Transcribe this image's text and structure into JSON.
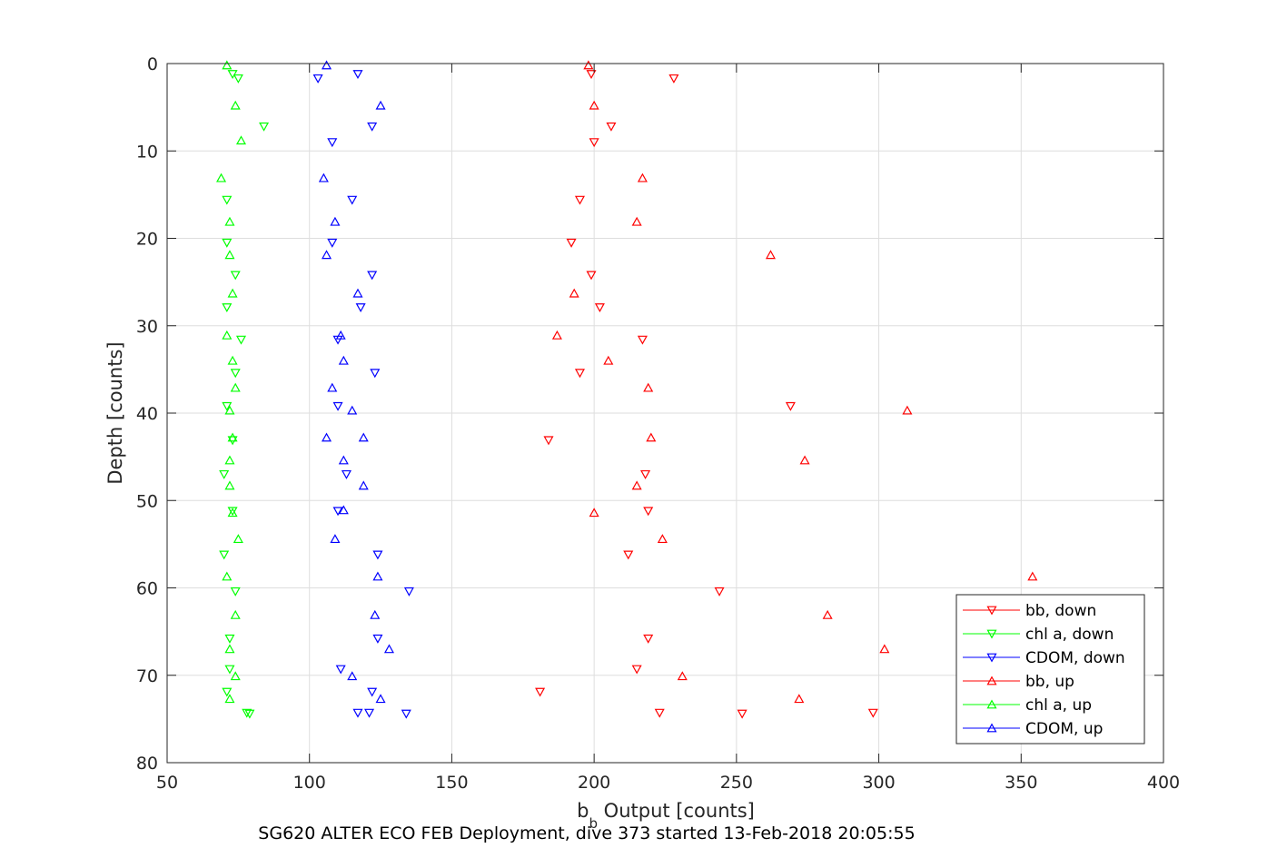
{
  "chart_data": {
    "type": "scatter",
    "xlabel_main": "b",
    "xlabel_sub": "b",
    "xlabel_rest": " Output [counts]",
    "ylabel": "Depth [counts]",
    "caption": "SG620 ALTER ECO FEB Deployment, dive 373 started 13-Feb-2018 20:05:55",
    "xlim": [
      50,
      400
    ],
    "ylim": [
      0,
      80
    ],
    "y_reversed": true,
    "grid": true,
    "legend_position": "bottom-right",
    "xticks": [
      50,
      100,
      150,
      200,
      250,
      300,
      350,
      400
    ],
    "yticks": [
      0,
      10,
      20,
      30,
      40,
      50,
      60,
      70,
      80
    ],
    "series": [
      {
        "name": "bb, down",
        "color": "#ff0000",
        "marker": "triangle-down",
        "points": [
          [
            199,
            1.2
          ],
          [
            228,
            1.7
          ],
          [
            206,
            7.2
          ],
          [
            200,
            9
          ],
          [
            195,
            15.6
          ],
          [
            192,
            20.5
          ],
          [
            199,
            24.2
          ],
          [
            202,
            27.9
          ],
          [
            217,
            31.6
          ],
          [
            195,
            35.4
          ],
          [
            269,
            39.2
          ],
          [
            184,
            43.1
          ],
          [
            218,
            47
          ],
          [
            219,
            51.2
          ],
          [
            212,
            56.2
          ],
          [
            244,
            60.4
          ],
          [
            219,
            65.8
          ],
          [
            215,
            69.3
          ],
          [
            181,
            71.9
          ],
          [
            223,
            74.3
          ],
          [
            252,
            74.4
          ],
          [
            298,
            74.3
          ]
        ]
      },
      {
        "name": "chl a, down",
        "color": "#00ff00",
        "marker": "triangle-down",
        "points": [
          [
            73,
            1.2
          ],
          [
            75,
            1.7
          ],
          [
            84,
            7.2
          ],
          [
            71,
            15.6
          ],
          [
            71,
            20.5
          ],
          [
            74,
            24.2
          ],
          [
            71,
            27.9
          ],
          [
            76,
            31.6
          ],
          [
            74,
            35.4
          ],
          [
            71,
            39.2
          ],
          [
            73,
            43.1
          ],
          [
            70,
            47
          ],
          [
            73,
            51.2
          ],
          [
            70,
            56.2
          ],
          [
            74,
            60.4
          ],
          [
            72,
            65.8
          ],
          [
            72,
            69.3
          ],
          [
            71,
            71.9
          ],
          [
            78,
            74.3
          ],
          [
            79,
            74.4
          ]
        ]
      },
      {
        "name": "CDOM, down",
        "color": "#0000ff",
        "marker": "triangle-down",
        "points": [
          [
            117,
            1.2
          ],
          [
            103,
            1.7
          ],
          [
            122,
            7.2
          ],
          [
            108,
            9
          ],
          [
            115,
            15.6
          ],
          [
            108,
            20.5
          ],
          [
            122,
            24.2
          ],
          [
            118,
            27.9
          ],
          [
            110,
            31.6
          ],
          [
            123,
            35.4
          ],
          [
            110,
            39.2
          ],
          [
            113,
            47
          ],
          [
            110,
            51.2
          ],
          [
            124,
            56.2
          ],
          [
            135,
            60.4
          ],
          [
            124,
            65.8
          ],
          [
            111,
            69.3
          ],
          [
            122,
            71.9
          ],
          [
            117,
            74.3
          ],
          [
            121,
            74.3
          ],
          [
            134,
            74.4
          ]
        ]
      },
      {
        "name": "bb, up",
        "color": "#ff0000",
        "marker": "triangle-up",
        "points": [
          [
            198,
            0.2
          ],
          [
            200,
            4.8
          ],
          [
            217,
            13.1
          ],
          [
            215,
            18.1
          ],
          [
            262,
            21.9
          ],
          [
            193,
            26.3
          ],
          [
            187,
            31.1
          ],
          [
            205,
            34
          ],
          [
            219,
            37.1
          ],
          [
            310,
            39.7
          ],
          [
            220,
            42.8
          ],
          [
            274,
            45.4
          ],
          [
            215,
            48.3
          ],
          [
            200,
            51.4
          ],
          [
            224,
            54.4
          ],
          [
            354,
            58.7
          ],
          [
            282,
            63.1
          ],
          [
            302,
            67
          ],
          [
            231,
            70.1
          ],
          [
            272,
            72.7
          ]
        ]
      },
      {
        "name": "chl a, up",
        "color": "#00ff00",
        "marker": "triangle-up",
        "points": [
          [
            71,
            0.2
          ],
          [
            74,
            4.8
          ],
          [
            76,
            8.8
          ],
          [
            69,
            13.1
          ],
          [
            72,
            18.1
          ],
          [
            72,
            21.9
          ],
          [
            73,
            26.3
          ],
          [
            71,
            31.1
          ],
          [
            73,
            34
          ],
          [
            74,
            37.1
          ],
          [
            72,
            39.7
          ],
          [
            73,
            42.8
          ],
          [
            72,
            45.4
          ],
          [
            72,
            48.3
          ],
          [
            73,
            51.4
          ],
          [
            75,
            54.4
          ],
          [
            71,
            58.7
          ],
          [
            74,
            63.1
          ],
          [
            72,
            67
          ],
          [
            74,
            70.1
          ],
          [
            72,
            72.7
          ]
        ]
      },
      {
        "name": "CDOM, up",
        "color": "#0000ff",
        "marker": "triangle-up",
        "points": [
          [
            106,
            0.2
          ],
          [
            125,
            4.8
          ],
          [
            105,
            13.1
          ],
          [
            109,
            18.1
          ],
          [
            106,
            21.9
          ],
          [
            117,
            26.3
          ],
          [
            111,
            31.1
          ],
          [
            112,
            34
          ],
          [
            108,
            37.1
          ],
          [
            115,
            39.7
          ],
          [
            106,
            42.8
          ],
          [
            119,
            42.8
          ],
          [
            112,
            45.4
          ],
          [
            119,
            48.3
          ],
          [
            112,
            51.1
          ],
          [
            109,
            54.4
          ],
          [
            124,
            58.7
          ],
          [
            123,
            63.1
          ],
          [
            128,
            67
          ],
          [
            115,
            70.1
          ],
          [
            125,
            72.7
          ]
        ]
      }
    ]
  }
}
